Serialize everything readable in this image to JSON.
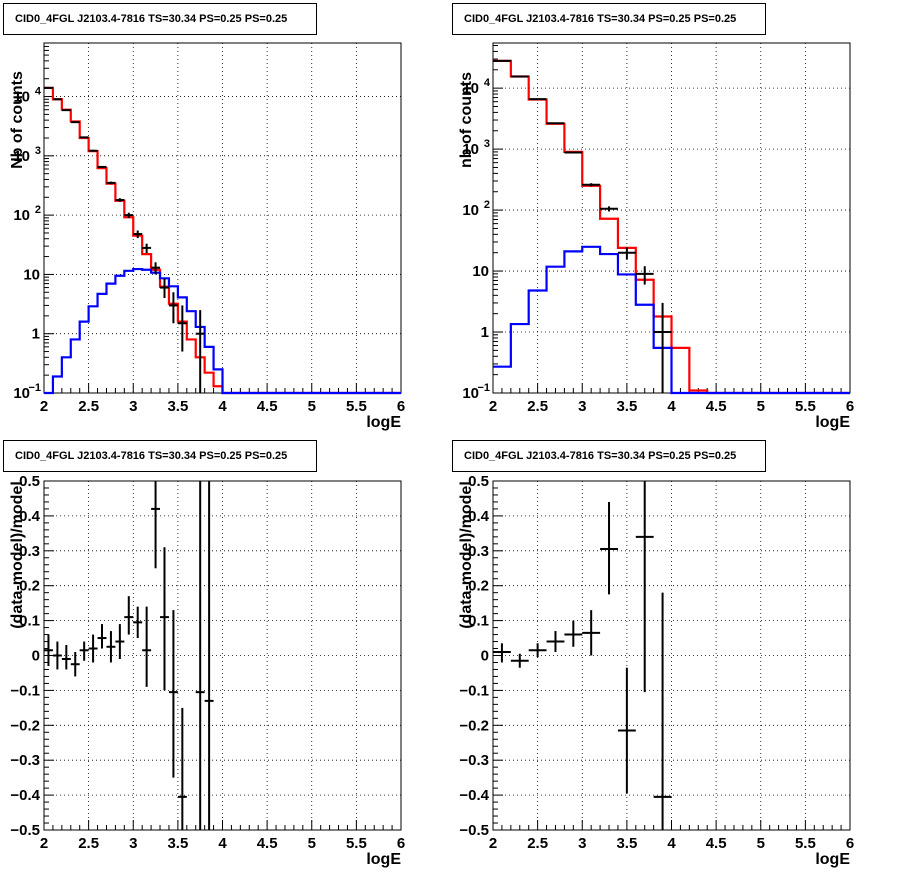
{
  "chart_data": [
    {
      "type": "line",
      "title": "CID0_4FGL J2103.4-7816 TS=30.34 PS=0.25 PS=0.25",
      "xlabel": "logE",
      "ylabel": "Nb of counts",
      "xlim": [
        2,
        6
      ],
      "ylim": [
        0.1,
        80000
      ],
      "ylog": true,
      "grid": true,
      "x_ticks": [
        "2",
        "2.5",
        "3",
        "3.5",
        "4",
        "4.5",
        "5",
        "5.5",
        "6"
      ],
      "y_ticks": [
        {
          "value": 0.1,
          "label": "10",
          "sup": "−1"
        },
        {
          "value": 1,
          "label": "1",
          "sup": ""
        },
        {
          "value": 10,
          "label": "10",
          "sup": ""
        },
        {
          "value": 100,
          "label": "10",
          "sup": "2"
        },
        {
          "value": 1000,
          "label": "10",
          "sup": "3"
        },
        {
          "value": 10000,
          "label": "10",
          "sup": "4"
        }
      ],
      "bin_edges": [
        2.0,
        2.1,
        2.2,
        2.3,
        2.4,
        2.5,
        2.6,
        2.7,
        2.8,
        2.9,
        3.0,
        3.1,
        3.2,
        3.3,
        3.4,
        3.5,
        3.6,
        3.7,
        3.8,
        3.9,
        4.0,
        4.1,
        4.2,
        4.3,
        4.4,
        4.5,
        4.6,
        4.7,
        4.8,
        4.9,
        5.0,
        5.1,
        5.2,
        5.3,
        5.4,
        5.5,
        5.6,
        5.7,
        5.8,
        5.9,
        6.0
      ],
      "series": [
        {
          "color": "#ff0000",
          "style": "step",
          "values": [
            14000,
            9000,
            6000,
            3800,
            2000,
            1200,
            620,
            340,
            175,
            92,
            45,
            22,
            12,
            6.2,
            3.2,
            1.6,
            0.8,
            0.4,
            0.22,
            0.13,
            0.1,
            0.1,
            0.1,
            0.1,
            0.1,
            0.1,
            0.1,
            0.1,
            0.1,
            0.1,
            0.1,
            0.1,
            0.1,
            0.1,
            0.1,
            0.1,
            0.1,
            0.1,
            0.1,
            0.1
          ]
        },
        {
          "color": "#0000ff",
          "style": "step",
          "values": [
            0.1,
            0.19,
            0.4,
            0.8,
            1.6,
            2.9,
            4.7,
            7,
            9.5,
            11.5,
            12.3,
            12,
            10.7,
            8.6,
            6.3,
            4.1,
            2.4,
            1.3,
            0.6,
            0.25,
            0.1,
            0.1,
            0.1,
            0.1,
            0.1,
            0.1,
            0.1,
            0.1,
            0.1,
            0.1,
            0.1,
            0.1,
            0.1,
            0.1,
            0.1,
            0.1,
            0.1,
            0.1,
            0.1,
            0.1
          ]
        }
      ],
      "points": [
        {
          "x": 2.05,
          "y": 14000,
          "lo": 13800,
          "hi": 14200
        },
        {
          "x": 2.15,
          "y": 9000,
          "lo": 8850,
          "hi": 9150
        },
        {
          "x": 2.25,
          "y": 5900,
          "lo": 5780,
          "hi": 6020
        },
        {
          "x": 2.35,
          "y": 3700,
          "lo": 3610,
          "hi": 3790
        },
        {
          "x": 2.45,
          "y": 2050,
          "lo": 2000,
          "hi": 2100
        },
        {
          "x": 2.55,
          "y": 1220,
          "lo": 1180,
          "hi": 1260
        },
        {
          "x": 2.65,
          "y": 650,
          "lo": 625,
          "hi": 675
        },
        {
          "x": 2.75,
          "y": 350,
          "lo": 332,
          "hi": 368
        },
        {
          "x": 2.85,
          "y": 180,
          "lo": 167,
          "hi": 193
        },
        {
          "x": 2.95,
          "y": 100,
          "lo": 90,
          "hi": 110
        },
        {
          "x": 3.05,
          "y": 48,
          "lo": 41,
          "hi": 55
        },
        {
          "x": 3.15,
          "y": 28,
          "lo": 23,
          "hi": 33
        },
        {
          "x": 3.25,
          "y": 13,
          "lo": 10,
          "hi": 16
        },
        {
          "x": 3.35,
          "y": 6,
          "lo": 4,
          "hi": 8.5
        },
        {
          "x": 3.45,
          "y": 3,
          "lo": 1.5,
          "hi": 5
        },
        {
          "x": 3.55,
          "y": 1.5,
          "lo": 0.5,
          "hi": 3
        },
        {
          "x": 3.75,
          "y": 1,
          "lo": 0.1,
          "hi": 2.5
        }
      ]
    },
    {
      "type": "line",
      "title": "CID0_4FGL J2103.4-7816 TS=30.34 PS=0.25 PS=0.25",
      "xlabel": "logE",
      "ylabel": "nb of counts",
      "xlim": [
        2,
        6
      ],
      "ylim": [
        0.1,
        55000
      ],
      "ylog": true,
      "grid": true,
      "x_ticks": [
        "2",
        "2.5",
        "3",
        "3.5",
        "4",
        "4.5",
        "5",
        "5.5",
        "6"
      ],
      "y_ticks": [
        {
          "value": 0.1,
          "label": "10",
          "sup": "−1"
        },
        {
          "value": 1,
          "label": "1",
          "sup": ""
        },
        {
          "value": 10,
          "label": "10",
          "sup": ""
        },
        {
          "value": 100,
          "label": "10",
          "sup": "2"
        },
        {
          "value": 1000,
          "label": "10",
          "sup": "3"
        },
        {
          "value": 10000,
          "label": "10",
          "sup": "4"
        }
      ],
      "bin_edges": [
        2.0,
        2.2,
        2.4,
        2.6,
        2.8,
        3.0,
        3.2,
        3.4,
        3.6,
        3.8,
        4.0,
        4.2,
        4.4,
        4.6,
        4.8,
        5.0,
        5.2,
        5.4,
        5.6,
        5.8,
        6.0
      ],
      "series": [
        {
          "color": "#ff0000",
          "style": "step",
          "values": [
            28000,
            15500,
            6500,
            2600,
            900,
            250,
            72,
            24,
            7.2,
            1.8,
            0.55,
            0.11,
            0.1,
            0.1,
            0.1,
            0.1,
            0.1,
            0.1,
            0.1,
            0.1
          ]
        },
        {
          "color": "#0000ff",
          "style": "step",
          "values": [
            0.27,
            1.35,
            4.8,
            11.8,
            21,
            25,
            19,
            8.8,
            2.8,
            0.55,
            0.1,
            0.1,
            0.1,
            0.1,
            0.1,
            0.1,
            0.1,
            0.1,
            0.1,
            0.1
          ]
        }
      ],
      "points": [
        {
          "x": 2.1,
          "y": 28000,
          "lo": 27800,
          "hi": 28200
        },
        {
          "x": 2.3,
          "y": 15500,
          "lo": 15300,
          "hi": 15700
        },
        {
          "x": 2.5,
          "y": 6600,
          "lo": 6500,
          "hi": 6700
        },
        {
          "x": 2.7,
          "y": 2650,
          "lo": 2600,
          "hi": 2700
        },
        {
          "x": 2.9,
          "y": 880,
          "lo": 850,
          "hi": 910
        },
        {
          "x": 3.1,
          "y": 260,
          "lo": 244,
          "hi": 276
        },
        {
          "x": 3.3,
          "y": 105,
          "lo": 95,
          "hi": 115
        },
        {
          "x": 3.5,
          "y": 20,
          "lo": 15.5,
          "hi": 24.5
        },
        {
          "x": 3.7,
          "y": 9,
          "lo": 6,
          "hi": 12
        },
        {
          "x": 3.9,
          "y": 1,
          "lo": 0.1,
          "hi": 3
        }
      ]
    },
    {
      "type": "scatter",
      "title": "CID0_4FGL J2103.4-7816 TS=30.34 PS=0.25 PS=0.25",
      "xlabel": "logE",
      "ylabel": "(data-model)/model",
      "xlim": [
        2,
        6
      ],
      "ylim": [
        -0.5,
        0.5
      ],
      "grid": true,
      "x_ticks": [
        "2",
        "2.5",
        "3",
        "3.5",
        "4",
        "4.5",
        "5",
        "5.5",
        "6"
      ],
      "y_ticks": [
        "−0.5",
        "−0.4",
        "−0.3",
        "−0.2",
        "−0.1",
        "0",
        "0.1",
        "0.2",
        "0.3",
        "0.4",
        "0.5"
      ],
      "xerr": 0.05,
      "points": [
        {
          "x": 2.05,
          "y": 0.015,
          "lo": -0.03,
          "hi": 0.06
        },
        {
          "x": 2.15,
          "y": 0.0,
          "lo": -0.04,
          "hi": 0.04
        },
        {
          "x": 2.25,
          "y": -0.01,
          "lo": -0.04,
          "hi": 0.03
        },
        {
          "x": 2.35,
          "y": -0.025,
          "lo": -0.06,
          "hi": 0.01
        },
        {
          "x": 2.45,
          "y": 0.015,
          "lo": -0.015,
          "hi": 0.04
        },
        {
          "x": 2.55,
          "y": 0.02,
          "lo": -0.02,
          "hi": 0.06
        },
        {
          "x": 2.65,
          "y": 0.05,
          "lo": 0.02,
          "hi": 0.09
        },
        {
          "x": 2.75,
          "y": 0.025,
          "lo": -0.02,
          "hi": 0.07
        },
        {
          "x": 2.85,
          "y": 0.04,
          "lo": -0.01,
          "hi": 0.09
        },
        {
          "x": 2.95,
          "y": 0.11,
          "lo": 0.06,
          "hi": 0.17
        },
        {
          "x": 3.05,
          "y": 0.095,
          "lo": 0.05,
          "hi": 0.14
        },
        {
          "x": 3.15,
          "y": 0.015,
          "lo": -0.09,
          "hi": 0.14
        },
        {
          "x": 3.25,
          "y": 0.42,
          "lo": 0.25,
          "hi": 0.5
        },
        {
          "x": 3.35,
          "y": 0.11,
          "lo": -0.1,
          "hi": 0.31
        },
        {
          "x": 3.45,
          "y": -0.105,
          "lo": -0.35,
          "hi": 0.13
        },
        {
          "x": 3.55,
          "y": -0.405,
          "lo": -0.5,
          "hi": -0.15
        },
        {
          "x": 3.75,
          "y": -0.105,
          "lo": -0.5,
          "hi": 0.5
        },
        {
          "x": 3.85,
          "y": -0.13,
          "lo": -0.5,
          "hi": 0.5
        }
      ]
    },
    {
      "type": "scatter",
      "title": "CID0_4FGL J2103.4-7816 TS=30.34 PS=0.25 PS=0.25",
      "xlabel": "logE",
      "ylabel": "(data-model)/model",
      "xlim": [
        2,
        6
      ],
      "ylim": [
        -0.5,
        0.5
      ],
      "grid": true,
      "x_ticks": [
        "2",
        "2.5",
        "3",
        "3.5",
        "4",
        "4.5",
        "5",
        "5.5",
        "6"
      ],
      "y_ticks": [
        "−0.5",
        "−0.4",
        "−0.3",
        "−0.2",
        "−0.1",
        "0",
        "0.1",
        "0.2",
        "0.3",
        "0.4",
        "0.5"
      ],
      "xerr": 0.1,
      "points": [
        {
          "x": 2.1,
          "y": 0.01,
          "lo": -0.02,
          "hi": 0.035
        },
        {
          "x": 2.3,
          "y": -0.015,
          "lo": -0.035,
          "hi": 0.005
        },
        {
          "x": 2.5,
          "y": 0.015,
          "lo": -0.005,
          "hi": 0.035
        },
        {
          "x": 2.7,
          "y": 0.04,
          "lo": 0.01,
          "hi": 0.07
        },
        {
          "x": 2.9,
          "y": 0.06,
          "lo": 0.025,
          "hi": 0.1
        },
        {
          "x": 3.1,
          "y": 0.065,
          "lo": 0.0,
          "hi": 0.13
        },
        {
          "x": 3.3,
          "y": 0.305,
          "lo": 0.175,
          "hi": 0.44
        },
        {
          "x": 3.5,
          "y": -0.215,
          "lo": -0.395,
          "hi": -0.035
        },
        {
          "x": 3.7,
          "y": 0.34,
          "lo": -0.105,
          "hi": 0.5
        },
        {
          "x": 3.9,
          "y": -0.405,
          "lo": -0.5,
          "hi": 0.18
        }
      ]
    }
  ]
}
